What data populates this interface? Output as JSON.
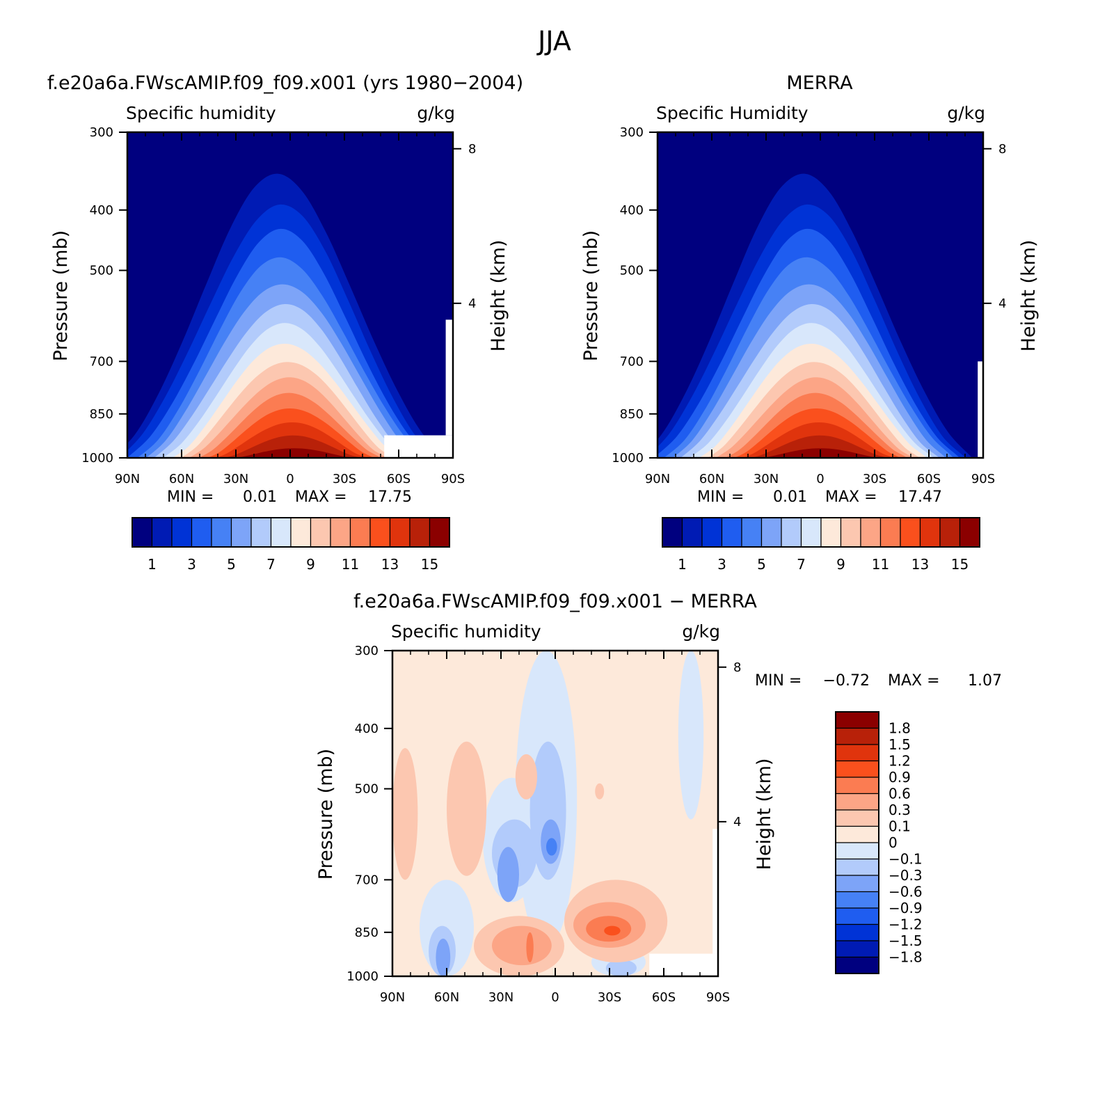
{
  "figure": {
    "title": "JJA"
  },
  "chart_data": [
    {
      "type": "heatmap",
      "case_title": "f.e20a6a.FWscAMIP.f09_f09.x001 (yrs 1980−2004)",
      "left_label": "Specific humidity",
      "right_label": "g/kg",
      "xlabel": "",
      "ylabel": "Pressure (mb)",
      "ylabel_right": "Height (km)",
      "x_ticks": [
        "90N",
        "60N",
        "30N",
        "0",
        "30S",
        "60S",
        "90S"
      ],
      "x_values": [
        90,
        60,
        30,
        0,
        -30,
        -60,
        -90
      ],
      "xlim": [
        90,
        -90
      ],
      "y_ticks": [
        "300",
        "400",
        "500",
        "700",
        "850",
        "1000"
      ],
      "y_values": [
        300,
        400,
        500,
        700,
        850,
        1000
      ],
      "ylim": [
        1000,
        300
      ],
      "y_scale": "log",
      "height_ticks": [
        "8",
        "4"
      ],
      "height_values": [
        8,
        4
      ],
      "min_label": "MIN =",
      "min": "0.01",
      "max_label": "MAX =",
      "max": "17.75",
      "peak_latitude": -8,
      "contour_levels": [
        1,
        2,
        3,
        4,
        5,
        6,
        7,
        8,
        9,
        10,
        11,
        12,
        13,
        14,
        15
      ],
      "colorbar_ticks": [
        "1",
        "3",
        "5",
        "7",
        "9",
        "11",
        "13",
        "15"
      ],
      "colorbar_tick_values": [
        1,
        3,
        5,
        7,
        9,
        11,
        13,
        15
      ],
      "colors": [
        "#00007f",
        "#001bb4",
        "#0033d6",
        "#1f5df0",
        "#4681f5",
        "#7da4f8",
        "#b2cbfb",
        "#d8e7fb",
        "#fde9da",
        "#fcc7b0",
        "#fca586",
        "#fb7c52",
        "#fa501d",
        "#e0340d",
        "#b82109",
        "#8b0000"
      ]
    },
    {
      "type": "heatmap",
      "case_title": "MERRA",
      "left_label": "Specific Humidity",
      "right_label": "g/kg",
      "xlabel": "",
      "ylabel": "Pressure (mb)",
      "ylabel_right": "Height (km)",
      "x_ticks": [
        "90N",
        "60N",
        "30N",
        "0",
        "30S",
        "60S",
        "90S"
      ],
      "x_values": [
        90,
        60,
        30,
        0,
        -30,
        -60,
        -90
      ],
      "xlim": [
        90,
        -90
      ],
      "y_ticks": [
        "300",
        "400",
        "500",
        "700",
        "850",
        "1000"
      ],
      "y_values": [
        300,
        400,
        500,
        700,
        850,
        1000
      ],
      "ylim": [
        1000,
        300
      ],
      "y_scale": "log",
      "height_ticks": [
        "8",
        "4"
      ],
      "height_values": [
        8,
        4
      ],
      "min_label": "MIN =",
      "min": "0.01",
      "max_label": "MAX =",
      "max": "17.47",
      "peak_latitude": -6,
      "contour_levels": [
        1,
        2,
        3,
        4,
        5,
        6,
        7,
        8,
        9,
        10,
        11,
        12,
        13,
        14,
        15
      ],
      "colorbar_ticks": [
        "1",
        "3",
        "5",
        "7",
        "9",
        "11",
        "13",
        "15"
      ],
      "colorbar_tick_values": [
        1,
        3,
        5,
        7,
        9,
        11,
        13,
        15
      ],
      "colors": [
        "#00007f",
        "#001bb4",
        "#0033d6",
        "#1f5df0",
        "#4681f5",
        "#7da4f8",
        "#b2cbfb",
        "#d8e7fb",
        "#fde9da",
        "#fcc7b0",
        "#fca586",
        "#fb7c52",
        "#fa501d",
        "#e0340d",
        "#b82109",
        "#8b0000"
      ]
    },
    {
      "type": "heatmap",
      "case_title": "f.e20a6a.FWscAMIP.f09_f09.x001 − MERRA",
      "left_label": "Specific humidity",
      "right_label": "g/kg",
      "xlabel": "",
      "ylabel": "Pressure (mb)",
      "ylabel_right": "Height (km)",
      "x_ticks": [
        "90N",
        "60N",
        "30N",
        "0",
        "30S",
        "60S",
        "90S"
      ],
      "x_values": [
        90,
        60,
        30,
        0,
        -30,
        -60,
        -90
      ],
      "xlim": [
        90,
        -90
      ],
      "y_ticks": [
        "300",
        "400",
        "500",
        "700",
        "850",
        "1000"
      ],
      "y_values": [
        300,
        400,
        500,
        700,
        850,
        1000
      ],
      "ylim": [
        1000,
        300
      ],
      "y_scale": "log",
      "height_ticks": [
        "8",
        "4"
      ],
      "height_values": [
        8,
        4
      ],
      "min_label": "MIN =",
      "min": "−0.72",
      "max_label": "MAX =",
      "max": "1.07",
      "contour_levels": [
        -1.8,
        -1.5,
        -1.2,
        -0.9,
        -0.6,
        -0.3,
        -0.1,
        0,
        0.1,
        0.3,
        0.6,
        0.9,
        1.2,
        1.5,
        1.8
      ],
      "colorbar_ticks": [
        "1.8",
        "1.5",
        "1.2",
        "0.9",
        "0.6",
        "0.3",
        "0.1",
        "0",
        "−0.1",
        "−0.3",
        "−0.6",
        "−0.9",
        "−1.2",
        "−1.5",
        "−1.8"
      ],
      "colors_top_to_bottom": [
        "#8b0000",
        "#b82109",
        "#e0340d",
        "#fa501d",
        "#fb7c52",
        "#fca586",
        "#fcc7b0",
        "#fde9da",
        "#d8e7fb",
        "#b2cbfb",
        "#7da4f8",
        "#4681f5",
        "#1f5df0",
        "#0033d6",
        "#001bb4",
        "#00007f"
      ]
    }
  ]
}
